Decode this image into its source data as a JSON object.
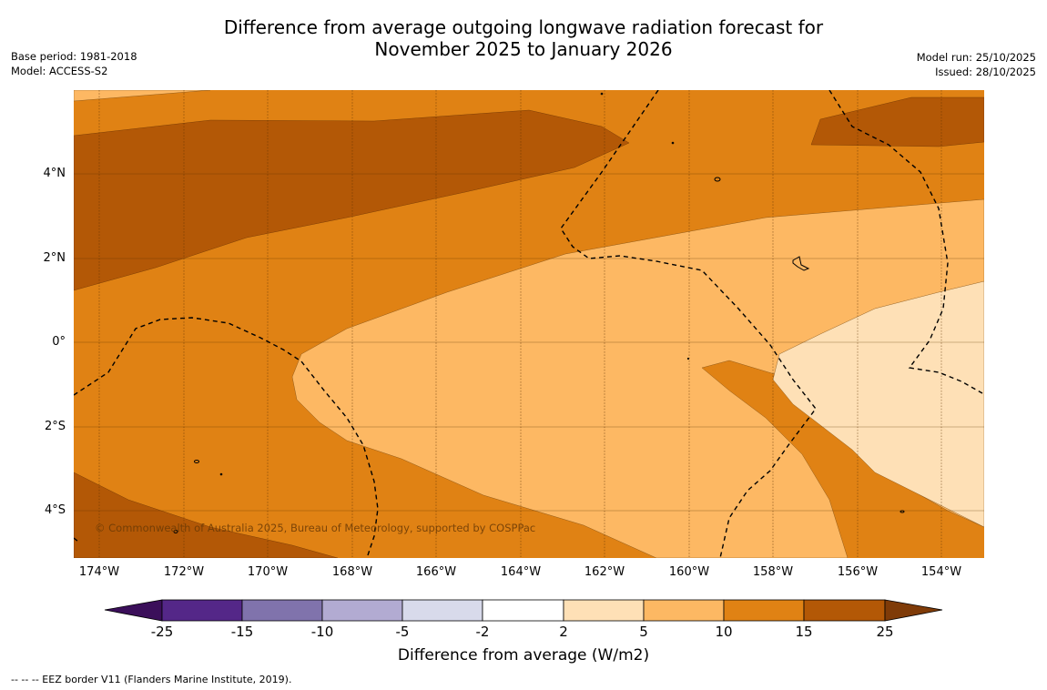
{
  "title_line1": "Difference from average outgoing longwave radiation forecast for",
  "title_line2": "November 2025 to January 2026",
  "base_period": "Base period: 1981-2018",
  "model": "Model: ACCESS-S2",
  "model_run": "Model run: 25/10/2025",
  "issued": "Issued: 28/10/2025",
  "copyright": "© Commonwealth of Australia 2025, Bureau of Meteorology, supported by COSPPac",
  "longitude_labels": [
    "174°W",
    "172°W",
    "170°W",
    "168°W",
    "166°W",
    "164°W",
    "162°W",
    "160°W",
    "158°W",
    "156°W",
    "154°W"
  ],
  "latitude_labels": [
    "4°N",
    "2°N",
    "0°",
    "2°S",
    "4°S"
  ],
  "colorbar": {
    "title": "Difference from average (W/m2)",
    "tick_labels": [
      "-25",
      "-15",
      "-10",
      "-5",
      "-2",
      "2",
      "5",
      "10",
      "15",
      "25"
    ],
    "colors": [
      "#3b0f5a",
      "#542788",
      "#8073ac",
      "#b2abd2",
      "#d8daeb",
      "#ffffff",
      "#fee0b6",
      "#fdb863",
      "#e08214",
      "#b35806",
      "#7f3b08"
    ]
  },
  "footer": "--  --  -- EEZ border V11 (Flanders Marine Institute, 2019)."
}
